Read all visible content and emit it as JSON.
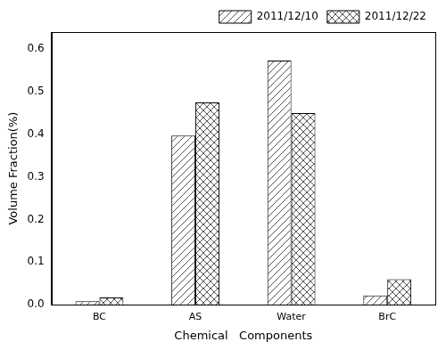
{
  "chart_data": {
    "type": "bar",
    "x_label": "Chemical   Components",
    "y_label": "Volume Fraction(%)",
    "categories": [
      "BC",
      "AS",
      "Water",
      "BrC"
    ],
    "series": [
      {
        "name": "2011/12/10",
        "color": "#555555",
        "values": [
          0.008,
          0.397,
          0.573,
          0.022
        ]
      },
      {
        "name": "2011/12/22",
        "color": "#555555",
        "values": [
          0.017,
          0.475,
          0.45,
          0.06
        ]
      }
    ],
    "ylim": [
      0,
      0.64
    ],
    "yticks": [
      {
        "value": 0,
        "label": "0.0"
      },
      0.1,
      0.2,
      0.3,
      0.4,
      0.5,
      0.6
    ],
    "grid": false,
    "legend": "upper right"
  }
}
